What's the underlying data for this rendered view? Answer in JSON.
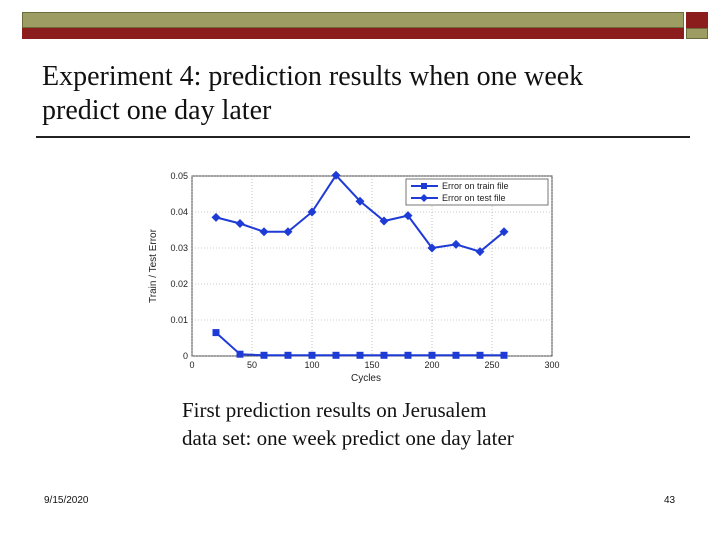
{
  "slide": {
    "title_line1": "Experiment 4: prediction results when one week",
    "title_line2": "predict one day later",
    "caption_line1": "First prediction results on Jerusalem",
    "caption_line2": "data set: one week predict one day later",
    "date": "9/15/2020",
    "page_number": "43"
  },
  "colors": {
    "series": "#1f3bd6",
    "olive": "#9c9c63",
    "dark_red": "#8b1d1d"
  },
  "chart_data": {
    "type": "line",
    "xlabel": "Cycles",
    "ylabel": "Train / Test Error",
    "xlim": [
      0,
      300
    ],
    "ylim": [
      0,
      0.05
    ],
    "xticks": [
      0,
      50,
      100,
      150,
      200,
      250,
      300
    ],
    "xtick_labels": [
      "0",
      "50",
      "100",
      "150",
      "200",
      "250",
      "300"
    ],
    "yticks": [
      0,
      0.01,
      0.02,
      0.03,
      0.04,
      0.05
    ],
    "ytick_labels": [
      "0",
      "0.01",
      "0.02",
      "0.03",
      "0.04",
      "0.05"
    ],
    "grid": true,
    "legend_position": "top-right",
    "series": [
      {
        "name": "Error on train file",
        "marker": "square",
        "x": [
          20,
          40,
          60,
          80,
          100,
          120,
          140,
          160,
          180,
          200,
          220,
          240,
          260
        ],
        "y": [
          0.0065,
          0.0005,
          0.0002,
          0.0002,
          0.0002,
          0.0002,
          0.0002,
          0.0002,
          0.0002,
          0.0002,
          0.0002,
          0.0002,
          0.0002
        ]
      },
      {
        "name": "Error on test file",
        "marker": "diamond",
        "x": [
          20,
          40,
          60,
          80,
          100,
          120,
          140,
          160,
          180,
          200,
          220,
          240,
          260
        ],
        "y": [
          0.0385,
          0.0368,
          0.0345,
          0.0345,
          0.04,
          0.0502,
          0.043,
          0.0375,
          0.039,
          0.03,
          0.031,
          0.029,
          0.0345
        ]
      }
    ]
  }
}
